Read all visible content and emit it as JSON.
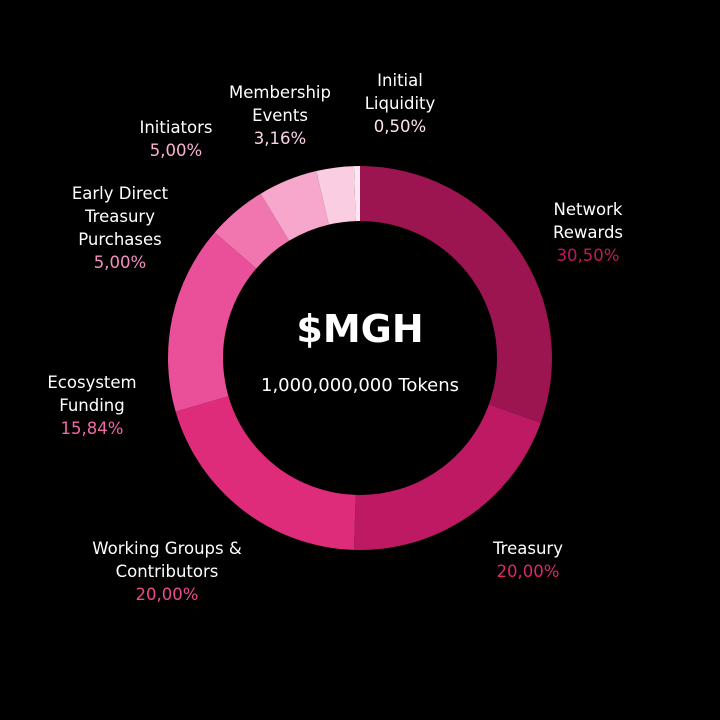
{
  "chart_data": {
    "type": "pie",
    "title": "$MGH",
    "subtitle": "1,000,000,000 Tokens",
    "slices": [
      {
        "label_lines": [
          "Network",
          "Rewards"
        ],
        "value": 30.5,
        "value_text": "30,50%",
        "color": "#9c1550",
        "label_color": "#c2185b"
      },
      {
        "label_lines": [
          "Treasury"
        ],
        "value": 20.0,
        "value_text": "20,00%",
        "color": "#be1a63",
        "label_color": "#e0246e"
      },
      {
        "label_lines": [
          "Working Groups &",
          "Contributors"
        ],
        "value": 20.0,
        "value_text": "20,00%",
        "color": "#de2c7a",
        "label_color": "#ee4a8e"
      },
      {
        "label_lines": [
          "Ecosystem",
          "Funding"
        ],
        "value": 15.84,
        "value_text": "15,84%",
        "color": "#ea4f99",
        "label_color": "#f06aa6"
      },
      {
        "label_lines": [
          "Early Direct",
          "Treasury",
          "Purchases"
        ],
        "value": 5.0,
        "value_text": "5,00%",
        "color": "#f176b0",
        "label_color": "#f58fbf"
      },
      {
        "label_lines": [
          "Initiators"
        ],
        "value": 5.0,
        "value_text": "5,00%",
        "color": "#f7a6cc",
        "label_color": "#f9b3d2"
      },
      {
        "label_lines": [
          "Membership",
          "Events"
        ],
        "value": 3.16,
        "value_text": "3,16%",
        "color": "#fbcde2",
        "label_color": "#fbd2e5"
      },
      {
        "label_lines": [
          "Initial",
          "Liquidity"
        ],
        "value": 0.5,
        "value_text": "0,50%",
        "color": "#fde8f2",
        "label_color": "#fde3ef"
      }
    ],
    "legend": "labels around ring"
  }
}
